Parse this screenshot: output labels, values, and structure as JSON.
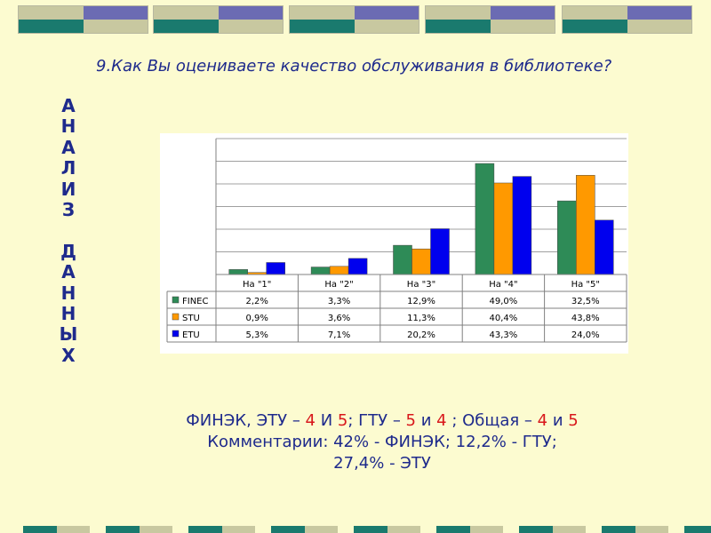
{
  "question": "9.Как Вы оцениваете качество обслуживания в библиотеке?",
  "vertical_title": [
    "А",
    "Н",
    "А",
    "Л",
    "И",
    "З",
    "",
    "Д",
    "А",
    "Н",
    "Н",
    "Ы",
    "Х"
  ],
  "colors": {
    "finec": "#2e8b57",
    "stu": "#ff9900",
    "etu": "#0000ee"
  },
  "chart_data": {
    "type": "bar",
    "categories": [
      "На \"1\"",
      "На \"2\"",
      "На \"3\"",
      "На \"4\"",
      "На \"5\""
    ],
    "series": [
      {
        "name": "FINEC",
        "values": [
          2.2,
          3.3,
          12.9,
          49.0,
          32.5
        ],
        "labels": [
          "2,2%",
          "3,3%",
          "12,9%",
          "49,0%",
          "32,5%"
        ]
      },
      {
        "name": "STU",
        "values": [
          0.9,
          3.6,
          11.3,
          40.4,
          43.8
        ],
        "labels": [
          "0,9%",
          "3,6%",
          "11,3%",
          "40,4%",
          "43,8%"
        ]
      },
      {
        "name": "ETU",
        "values": [
          5.3,
          7.1,
          20.2,
          43.3,
          24.0
        ],
        "labels": [
          "5,3%",
          "7,1%",
          "20,2%",
          "43,3%",
          "24,0%"
        ]
      }
    ],
    "ylim": [
      0,
      60
    ],
    "grid": true,
    "legend": "data-table"
  },
  "summary": {
    "line1": {
      "p1": "ФИНЭК, ЭТУ – ",
      "v1": "4",
      "p2": " И ",
      "v2": "5",
      "p3": "; ГТУ – ",
      "v3": "5",
      "p4": " и ",
      "v4": "4",
      "p5": " ; Общая – ",
      "v5": "4",
      "p6": " и ",
      "v6": "5"
    },
    "line2": "Комментарии: 42% - ФИНЭК; 12,2% - ГТУ;",
    "line3": "27,4% - ЭТУ"
  }
}
